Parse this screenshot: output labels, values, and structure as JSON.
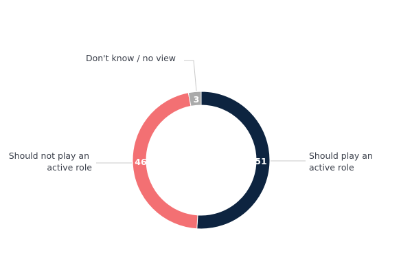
{
  "chart_data": {
    "type": "pie",
    "title": "",
    "categories": [
      "Should play an active role",
      "Should not play an active role",
      "Don't know / no view"
    ],
    "values": [
      51,
      46,
      3
    ],
    "colors": [
      "#0d2440",
      "#f37073",
      "#aaaaaa"
    ]
  }
}
